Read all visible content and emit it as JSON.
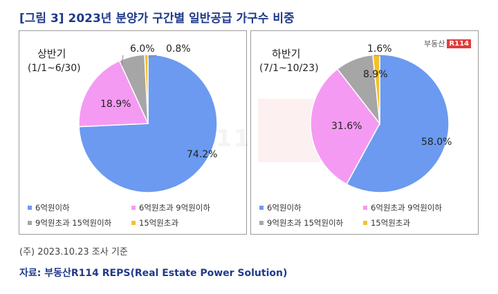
{
  "title": "[그림 3] 2023년 분양가 구간별 일반공급 가구수 비중",
  "colors": {
    "title": "#1f3a8a",
    "series": [
      "#6b9af0",
      "#f59af3",
      "#a6a6a6",
      "#f5c02a"
    ]
  },
  "logo": {
    "text": "부동산",
    "badge": "R114"
  },
  "watermark": "부동산 R114",
  "chart_data": [
    {
      "type": "pie",
      "period_label": "상반기",
      "date_range": "(1/1~6/30)",
      "categories": [
        "6억원이하",
        "6억원초과 9억원이하",
        "9억원초과 15억원이하",
        "15억원초과"
      ],
      "values": [
        74.2,
        18.9,
        6.0,
        0.8
      ],
      "labels": [
        "74.2%",
        "18.9%",
        "6.0%",
        "0.8%"
      ],
      "legend": "bottom"
    },
    {
      "type": "pie",
      "period_label": "하반기",
      "date_range": "(7/1~10/23)",
      "categories": [
        "6억원이하",
        "6억원초과 9억원이하",
        "9억원초과 15억원이하",
        "15억원초과"
      ],
      "values": [
        58.0,
        31.6,
        8.9,
        1.6
      ],
      "labels": [
        "58.0%",
        "31.6%",
        "8.9%",
        "1.6%"
      ],
      "legend": "bottom"
    }
  ],
  "note": "(주) 2023.10.23 조사 기준",
  "source": "자료: 부동산R114 REPS(Real Estate Power Solution)"
}
